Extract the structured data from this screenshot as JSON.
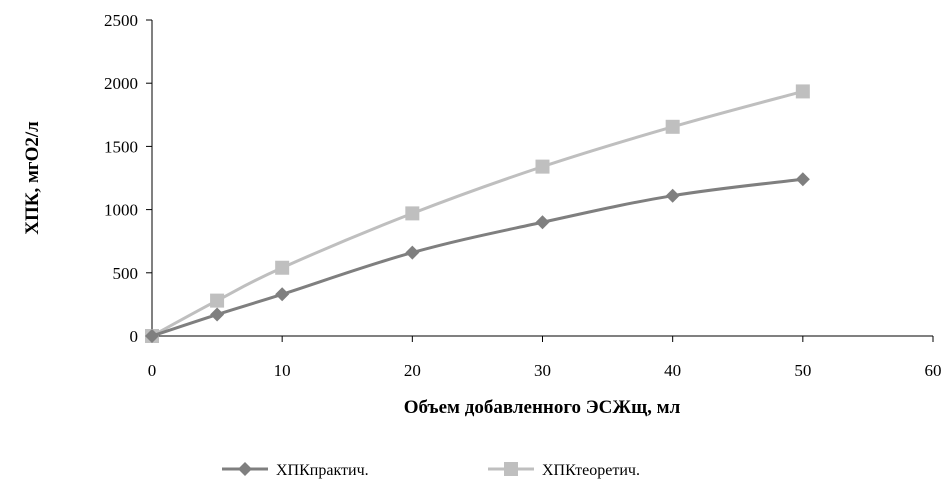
{
  "chart_data": {
    "type": "line",
    "title": "",
    "xlabel": "Объем добавленного ЭСЖщ, мл",
    "ylabel": "ХПК, мгО2/л",
    "xlim": [
      0,
      60
    ],
    "ylim": [
      0,
      2500
    ],
    "xticks": [
      0,
      10,
      20,
      30,
      40,
      50,
      60
    ],
    "yticks": [
      0,
      500,
      1000,
      1500,
      2000,
      2500
    ],
    "grid": false,
    "legend_position": "bottom",
    "series": [
      {
        "name": "ХПКпрактич.",
        "color": "#7f7f7f",
        "marker": "diamond",
        "x": [
          0,
          5,
          10,
          20,
          30,
          40,
          50
        ],
        "y": [
          0,
          170,
          330,
          660,
          900,
          1110,
          1240
        ]
      },
      {
        "name": "ХПКтеоретич.",
        "color": "#bfbfbf",
        "marker": "square",
        "x": [
          0,
          5,
          10,
          20,
          30,
          40,
          50
        ],
        "y": [
          0,
          280,
          540,
          970,
          1340,
          1655,
          1935
        ]
      }
    ]
  }
}
